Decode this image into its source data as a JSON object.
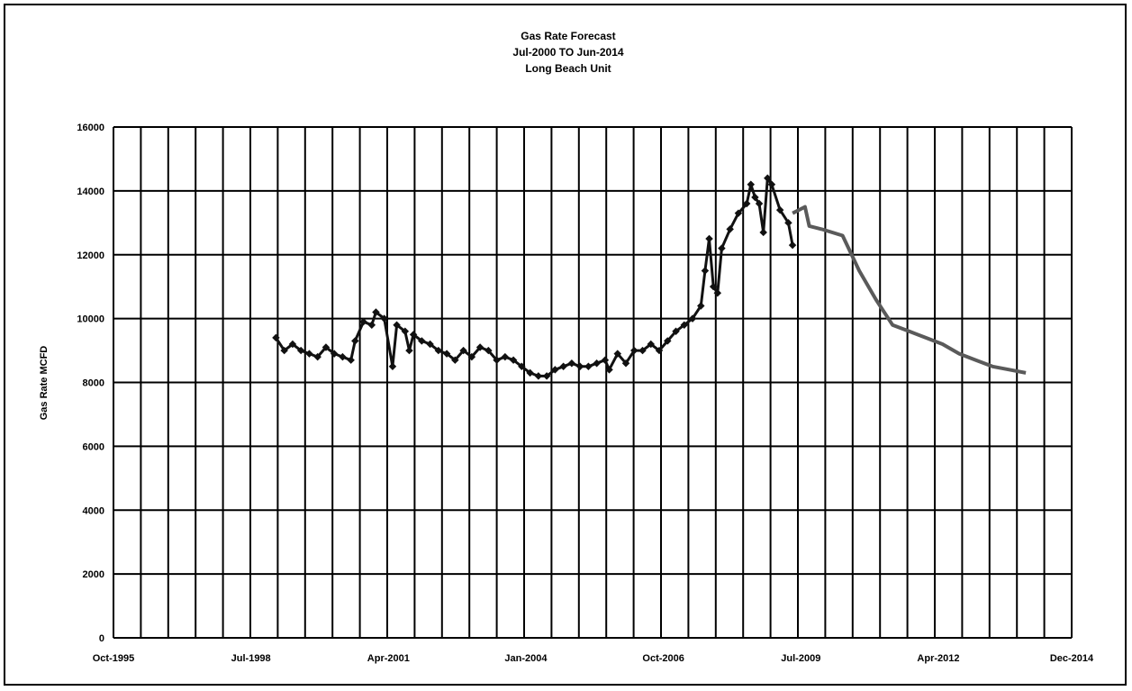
{
  "chart_data": {
    "type": "line",
    "title": [
      "Gas Rate Forecast",
      "Jul-2000 TO Jun-2014",
      "Long Beach Unit"
    ],
    "ylabel": "Gas Rate MCFD",
    "xlabel": "",
    "ylim": [
      0,
      16000
    ],
    "xlim": [
      "Oct-1995",
      "Dec-2014"
    ],
    "y_ticks": [
      "0",
      "2000",
      "4000",
      "6000",
      "8000",
      "10000",
      "12000",
      "14000",
      "16000"
    ],
    "x_ticks": [
      "Oct-1995",
      "Jul-1998",
      "Apr-2001",
      "Jan-2004",
      "Oct-2006",
      "Jul-2009",
      "Apr-2012",
      "Dec-2014"
    ],
    "grid": true,
    "legend": "none",
    "series": [
      {
        "color": "#111111",
        "markers": true,
        "points": [
          [
            "1999-01",
            9400
          ],
          [
            "1999-03",
            9000
          ],
          [
            "1999-05",
            9200
          ],
          [
            "1999-07",
            9000
          ],
          [
            "1999-09",
            8900
          ],
          [
            "1999-11",
            8800
          ],
          [
            "2000-01",
            9100
          ],
          [
            "2000-03",
            8900
          ],
          [
            "2000-05",
            8800
          ],
          [
            "2000-07",
            8700
          ],
          [
            "2000-08",
            9300
          ],
          [
            "2000-10",
            9900
          ],
          [
            "2000-12",
            9800
          ],
          [
            "2001-01",
            10200
          ],
          [
            "2001-03",
            10000
          ],
          [
            "2001-05",
            8500
          ],
          [
            "2001-06",
            9800
          ],
          [
            "2001-08",
            9600
          ],
          [
            "2001-09",
            9000
          ],
          [
            "2001-10",
            9500
          ],
          [
            "2001-12",
            9300
          ],
          [
            "2002-02",
            9200
          ],
          [
            "2002-04",
            9000
          ],
          [
            "2002-06",
            8900
          ],
          [
            "2002-08",
            8700
          ],
          [
            "2002-10",
            9000
          ],
          [
            "2002-12",
            8800
          ],
          [
            "2003-02",
            9100
          ],
          [
            "2003-04",
            9000
          ],
          [
            "2003-06",
            8700
          ],
          [
            "2003-08",
            8800
          ],
          [
            "2003-10",
            8700
          ],
          [
            "2003-12",
            8500
          ],
          [
            "2004-02",
            8300
          ],
          [
            "2004-04",
            8200
          ],
          [
            "2004-06",
            8200
          ],
          [
            "2004-08",
            8400
          ],
          [
            "2004-10",
            8500
          ],
          [
            "2004-12",
            8600
          ],
          [
            "2005-02",
            8500
          ],
          [
            "2005-04",
            8500
          ],
          [
            "2005-06",
            8600
          ],
          [
            "2005-08",
            8700
          ],
          [
            "2005-09",
            8400
          ],
          [
            "2005-11",
            8900
          ],
          [
            "2006-01",
            8600
          ],
          [
            "2006-03",
            9000
          ],
          [
            "2006-05",
            9000
          ],
          [
            "2006-07",
            9200
          ],
          [
            "2006-09",
            9000
          ],
          [
            "2006-11",
            9300
          ],
          [
            "2007-01",
            9600
          ],
          [
            "2007-03",
            9800
          ],
          [
            "2007-05",
            10000
          ],
          [
            "2007-07",
            10400
          ],
          [
            "2007-08",
            11500
          ],
          [
            "2007-09",
            12500
          ],
          [
            "2007-10",
            11000
          ],
          [
            "2007-11",
            10800
          ],
          [
            "2007-12",
            12200
          ],
          [
            "2008-02",
            12800
          ],
          [
            "2008-04",
            13300
          ],
          [
            "2008-06",
            13600
          ],
          [
            "2008-07",
            14200
          ],
          [
            "2008-08",
            13800
          ],
          [
            "2008-09",
            13600
          ],
          [
            "2008-10",
            12700
          ],
          [
            "2008-11",
            14400
          ],
          [
            "2008-12",
            14200
          ],
          [
            "2009-02",
            13400
          ],
          [
            "2009-04",
            13000
          ],
          [
            "2009-05",
            12300
          ]
        ]
      },
      {
        "color": "#5a5a5a",
        "markers": false,
        "points": [
          [
            "2009-05",
            13300
          ],
          [
            "2009-08",
            13500
          ],
          [
            "2009-09",
            12900
          ],
          [
            "2009-12",
            12800
          ],
          [
            "2010-05",
            12600
          ],
          [
            "2010-09",
            11500
          ],
          [
            "2011-01",
            10600
          ],
          [
            "2011-05",
            9800
          ],
          [
            "2011-09",
            9600
          ],
          [
            "2012-01",
            9400
          ],
          [
            "2012-05",
            9200
          ],
          [
            "2012-09",
            8900
          ],
          [
            "2013-01",
            8700
          ],
          [
            "2013-05",
            8500
          ],
          [
            "2013-09",
            8400
          ],
          [
            "2014-01",
            8300
          ]
        ]
      }
    ]
  }
}
